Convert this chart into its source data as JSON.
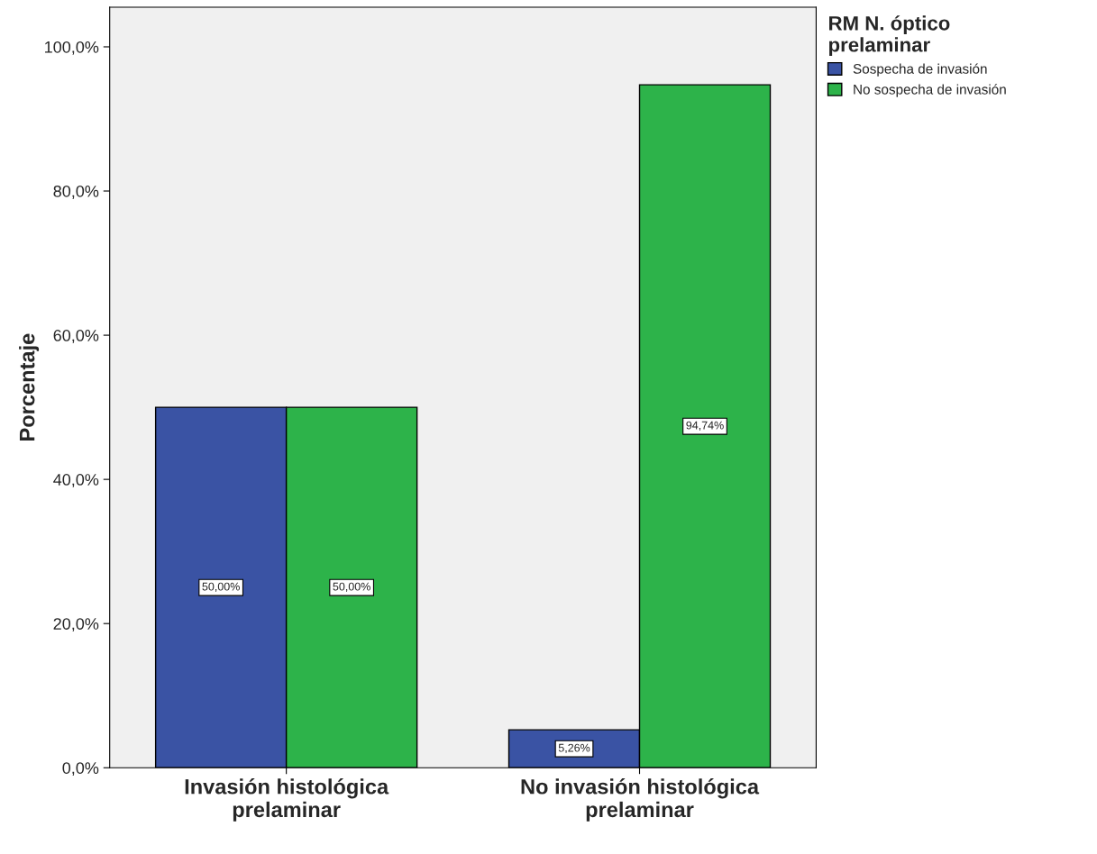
{
  "chart_data": {
    "type": "bar",
    "ylabel": "Porcentaje",
    "legend_title": "RM N. óptico\nprelaminar",
    "categories": [
      "Invasión histológica\nprelaminar",
      "No invasión histológica\nprelaminar"
    ],
    "series": [
      {
        "name": "Sospecha de invasión",
        "color": "#3a53a4",
        "values": [
          50.0,
          5.26
        ],
        "value_labels": [
          "50,00%",
          "5,26%"
        ]
      },
      {
        "name": "No sospecha de invasión",
        "color": "#2db34a",
        "values": [
          50.0,
          94.74
        ],
        "value_labels": [
          "50,00%",
          "94,74%"
        ]
      }
    ],
    "ylim": [
      0,
      105.5
    ],
    "yticks": [
      {
        "value": 0,
        "label": "0,0%"
      },
      {
        "value": 20,
        "label": "20,0%"
      },
      {
        "value": 40,
        "label": "40,0%"
      },
      {
        "value": 60,
        "label": "60,0%"
      },
      {
        "value": 80,
        "label": "80,0%"
      },
      {
        "value": 100,
        "label": "100,0%"
      }
    ],
    "grid": false,
    "legend": "top right"
  }
}
